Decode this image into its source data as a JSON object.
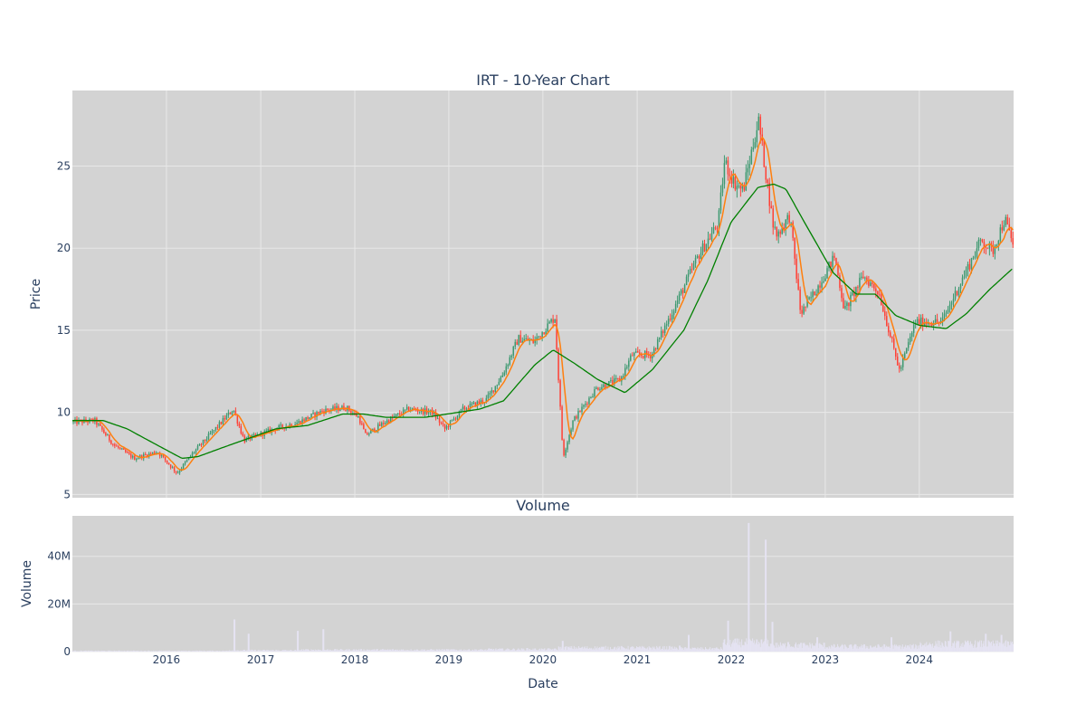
{
  "chart_data": [
    {
      "type": "candlestick",
      "title": "IRT - 10-Year Chart",
      "xlabel": "",
      "ylabel": "Price",
      "ylim": [
        4.8,
        29.6
      ],
      "yticks": [
        5,
        10,
        15,
        20,
        25
      ],
      "xlim": [
        "2015-01-01",
        "2025-01-01"
      ],
      "xticks": [
        "2016",
        "2017",
        "2018",
        "2019",
        "2020",
        "2021",
        "2022",
        "2023",
        "2024"
      ],
      "grid": true,
      "colors": {
        "background": "#d3d3d3",
        "grid": "#e8e8e8",
        "increasing": "#3d9970",
        "decreasing": "#ff4136",
        "short_ma": "#ff7f0e",
        "long_ma": "#008000"
      },
      "price_keypoints": [
        [
          "2015-01-01",
          9.4
        ],
        [
          "2015-04-01",
          9.5
        ],
        [
          "2015-06-15",
          8.0
        ],
        [
          "2015-09-01",
          7.2
        ],
        [
          "2015-12-01",
          7.6
        ],
        [
          "2016-02-15",
          6.3
        ],
        [
          "2016-04-15",
          7.5
        ],
        [
          "2016-07-01",
          8.8
        ],
        [
          "2016-09-20",
          10.2
        ],
        [
          "2016-11-01",
          8.3
        ],
        [
          "2017-03-01",
          9.0
        ],
        [
          "2017-06-01",
          9.4
        ],
        [
          "2017-09-01",
          10.1
        ],
        [
          "2017-12-01",
          10.3
        ],
        [
          "2018-01-20",
          9.7
        ],
        [
          "2018-02-15",
          8.6
        ],
        [
          "2018-05-01",
          9.4
        ],
        [
          "2018-08-01",
          10.2
        ],
        [
          "2018-11-01",
          10.0
        ],
        [
          "2018-12-20",
          9.0
        ],
        [
          "2019-03-01",
          10.2
        ],
        [
          "2019-06-01",
          10.8
        ],
        [
          "2019-08-01",
          12.3
        ],
        [
          "2019-10-01",
          14.5
        ],
        [
          "2019-12-01",
          14.3
        ],
        [
          "2020-02-20",
          15.8
        ],
        [
          "2020-03-23",
          7.3
        ],
        [
          "2020-05-01",
          9.5
        ],
        [
          "2020-08-01",
          11.5
        ],
        [
          "2020-11-01",
          12.0
        ],
        [
          "2020-12-15",
          13.5
        ],
        [
          "2021-03-01",
          13.5
        ],
        [
          "2021-06-01",
          16.5
        ],
        [
          "2021-09-01",
          19.6
        ],
        [
          "2021-11-15",
          21.5
        ],
        [
          "2021-12-10",
          25.3
        ],
        [
          "2022-01-15",
          24.0
        ],
        [
          "2022-02-20",
          23.5
        ],
        [
          "2022-04-20",
          27.8
        ],
        [
          "2022-06-15",
          21.5
        ],
        [
          "2022-07-01",
          20.8
        ],
        [
          "2022-08-20",
          22.0
        ],
        [
          "2022-10-01",
          16.0
        ],
        [
          "2022-12-01",
          17.5
        ],
        [
          "2023-02-10",
          19.5
        ],
        [
          "2023-03-20",
          16.2
        ],
        [
          "2023-06-01",
          18.3
        ],
        [
          "2023-08-01",
          17.3
        ],
        [
          "2023-10-20",
          12.5
        ],
        [
          "2023-12-20",
          15.5
        ],
        [
          "2024-04-01",
          15.5
        ],
        [
          "2024-07-01",
          18.5
        ],
        [
          "2024-09-01",
          20.5
        ],
        [
          "2024-10-15",
          19.8
        ],
        [
          "2024-12-01",
          21.8
        ],
        [
          "2024-12-31",
          20.3
        ]
      ],
      "long_ma_keypoints": [
        [
          "2015-01-01",
          9.5
        ],
        [
          "2015-05-01",
          9.5
        ],
        [
          "2015-08-01",
          9.0
        ],
        [
          "2015-11-15",
          8.1
        ],
        [
          "2016-03-01",
          7.2
        ],
        [
          "2016-05-01",
          7.3
        ],
        [
          "2016-09-01",
          8.0
        ],
        [
          "2017-03-01",
          9.0
        ],
        [
          "2017-07-01",
          9.2
        ],
        [
          "2017-11-15",
          9.9
        ],
        [
          "2018-02-01",
          9.9
        ],
        [
          "2018-05-01",
          9.7
        ],
        [
          "2018-10-01",
          9.7
        ],
        [
          "2019-05-01",
          10.2
        ],
        [
          "2019-08-01",
          10.7
        ],
        [
          "2019-12-01",
          12.9
        ],
        [
          "2020-02-10",
          13.8
        ],
        [
          "2020-05-01",
          13.0
        ],
        [
          "2020-08-01",
          12.0
        ],
        [
          "2020-11-15",
          11.2
        ],
        [
          "2021-03-01",
          12.6
        ],
        [
          "2021-07-01",
          15.0
        ],
        [
          "2021-10-01",
          18.0
        ],
        [
          "2022-01-01",
          21.6
        ],
        [
          "2022-04-15",
          23.7
        ],
        [
          "2022-06-15",
          23.9
        ],
        [
          "2022-08-01",
          23.6
        ],
        [
          "2022-10-15",
          21.5
        ],
        [
          "2023-02-01",
          18.5
        ],
        [
          "2023-05-01",
          17.2
        ],
        [
          "2023-07-15",
          17.2
        ],
        [
          "2023-10-01",
          15.9
        ],
        [
          "2024-01-01",
          15.3
        ],
        [
          "2024-04-15",
          15.1
        ],
        [
          "2024-07-01",
          16.0
        ],
        [
          "2024-10-01",
          17.5
        ],
        [
          "2024-12-31",
          18.8
        ]
      ]
    },
    {
      "type": "bar",
      "title": "Volume",
      "xlabel": "Date",
      "ylabel": "Volume",
      "ylim": [
        0,
        57000000
      ],
      "yticks": [
        0,
        20000000,
        40000000
      ],
      "ytick_labels": [
        "0",
        "20M",
        "40M"
      ],
      "grid": true,
      "colors": {
        "background": "#d3d3d3",
        "grid": "#e8e8e8",
        "bars": "#e5e3f2"
      },
      "baseline_levels": [
        [
          "2015-01-01",
          300000
        ],
        [
          "2016-09-01",
          500000
        ],
        [
          "2017-06-01",
          700000
        ],
        [
          "2019-06-01",
          900000
        ],
        [
          "2020-03-01",
          1500000
        ],
        [
          "2021-06-01",
          1200000
        ],
        [
          "2021-12-01",
          3500000
        ],
        [
          "2022-06-01",
          2500000
        ],
        [
          "2023-01-01",
          2000000
        ],
        [
          "2024-01-01",
          3000000
        ],
        [
          "2024-12-31",
          3500000
        ]
      ],
      "spikes": [
        [
          "2016-09-21",
          13500000
        ],
        [
          "2016-11-15",
          7500000
        ],
        [
          "2017-05-25",
          8700000
        ],
        [
          "2017-09-01",
          9400000
        ],
        [
          "2019-11-01",
          1500000
        ],
        [
          "2020-03-18",
          4500000
        ],
        [
          "2021-06-15",
          2500000
        ],
        [
          "2021-07-20",
          7000000
        ],
        [
          "2021-12-20",
          13000000
        ],
        [
          "2022-03-10",
          54000000
        ],
        [
          "2022-05-15",
          47000000
        ],
        [
          "2022-06-10",
          12500000
        ],
        [
          "2022-08-10",
          4000000
        ],
        [
          "2022-12-01",
          6000000
        ],
        [
          "2023-09-15",
          6000000
        ],
        [
          "2024-05-01",
          8500000
        ],
        [
          "2024-09-15",
          7500000
        ],
        [
          "2024-11-15",
          7000000
        ]
      ]
    }
  ]
}
